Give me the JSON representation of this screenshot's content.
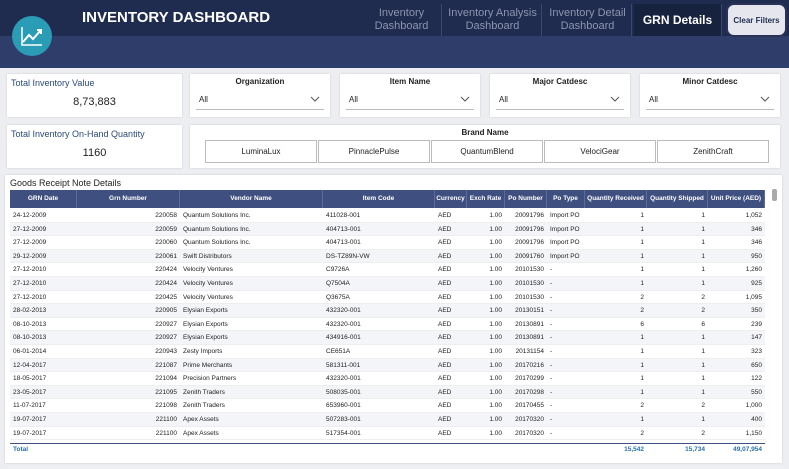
{
  "header": {
    "title": "INVENTORY DASHBOARD",
    "tabs": [
      "Inventory Dashboard",
      "Inventory Analysis Dashboard",
      "Inventory Detail Dashboard",
      "GRN Details"
    ],
    "clear_filters": "Clear Filters"
  },
  "kpis": [
    {
      "label": "Total Inventory Value",
      "value": "8,73,883"
    },
    {
      "label": "Total Inventory On-Hand Quantity",
      "value": "1160"
    }
  ],
  "slicers": [
    {
      "label": "Organization",
      "value": "All"
    },
    {
      "label": "Item Name",
      "value": "All"
    },
    {
      "label": "Major Catdesc",
      "value": "All"
    },
    {
      "label": "Minor Catdesc",
      "value": "All"
    }
  ],
  "brand": {
    "label": "Brand Name",
    "options": [
      "LuminaLux",
      "PinnaclePulse",
      "QuantumBlend",
      "VelociGear",
      "ZenithCraft"
    ]
  },
  "table": {
    "title": "Goods Receipt Note Details",
    "columns": [
      "GRN Date",
      "Grn Number",
      "Vendor Name",
      "Item Code",
      "Currency",
      "Exch Rate",
      "Po Number",
      "Po Type",
      "Quantity Received",
      "Quantity Shipped",
      "Unit Price (AED)"
    ],
    "rows": [
      [
        "24-12-2009",
        "220058",
        "Quantum Solutions Inc.",
        "411028-001",
        "AED",
        "1.00",
        "20091796",
        "Import PO",
        "1",
        "1",
        "1,052"
      ],
      [
        "27-12-2009",
        "220059",
        "Quantum Solutions Inc.",
        "404713-001",
        "AED",
        "1.00",
        "20091796",
        "Import PO",
        "1",
        "1",
        "346"
      ],
      [
        "27-12-2009",
        "220060",
        "Quantum Solutions Inc.",
        "404713-001",
        "AED",
        "1.00",
        "20091796",
        "Import PO",
        "1",
        "1",
        "346"
      ],
      [
        "29-12-2009",
        "220061",
        "Swift Distributors",
        "DS-TZ89N-VW",
        "AED",
        "1.00",
        "20091760",
        "Import PO",
        "1",
        "1",
        "950"
      ],
      [
        "27-12-2010",
        "220424",
        "Velocity Ventures",
        "C9726A",
        "AED",
        "1.00",
        "20101530",
        "-",
        "1",
        "1",
        "1,260"
      ],
      [
        "27-12-2010",
        "220424",
        "Velocity Ventures",
        "Q7504A",
        "AED",
        "1.00",
        "20101530",
        "-",
        "1",
        "1",
        "925"
      ],
      [
        "27-12-2010",
        "220425",
        "Velocity Ventures",
        "Q3675A",
        "AED",
        "1.00",
        "20101530",
        "-",
        "2",
        "2",
        "1,095"
      ],
      [
        "28-02-2013",
        "220905",
        "Elysian Exports",
        "432320-001",
        "AED",
        "1.00",
        "20130151",
        "-",
        "2",
        "2",
        "350"
      ],
      [
        "08-10-2013",
        "220927",
        "Elysian Exports",
        "432320-001",
        "AED",
        "1.00",
        "20130891",
        "-",
        "6",
        "6",
        "239"
      ],
      [
        "08-10-2013",
        "220927",
        "Elysian Exports",
        "434916-001",
        "AED",
        "1.00",
        "20130891",
        "-",
        "1",
        "1",
        "147"
      ],
      [
        "06-01-2014",
        "220943",
        "Zesty Imports",
        "CE651A",
        "AED",
        "1.00",
        "20131154",
        "-",
        "1",
        "1",
        "323"
      ],
      [
        "12-04-2017",
        "221087",
        "Prime Merchants",
        "581311-001",
        "AED",
        "1.00",
        "20170216",
        "-",
        "1",
        "1",
        "650"
      ],
      [
        "18-05-2017",
        "221094",
        "Precision Partners",
        "432320-001",
        "AED",
        "1.00",
        "20170299",
        "-",
        "1",
        "1",
        "122"
      ],
      [
        "23-05-2017",
        "221095",
        "Zenith Traders",
        "508035-001",
        "AED",
        "1.00",
        "20170298",
        "-",
        "1",
        "1",
        "550"
      ],
      [
        "11-07-2017",
        "221098",
        "Zenith Traders",
        "653960-001",
        "AED",
        "1.00",
        "20170455",
        "-",
        "2",
        "2",
        "1,000"
      ],
      [
        "19-07-2017",
        "221100",
        "Apex Assets",
        "507283-001",
        "AED",
        "1.00",
        "20170320",
        "-",
        "1",
        "1",
        "400"
      ],
      [
        "19-07-2017",
        "221100",
        "Apex Assets",
        "517354-001",
        "AED",
        "1.00",
        "20170320",
        "-",
        "2",
        "2",
        "1,150"
      ]
    ],
    "total": {
      "label": "Total",
      "quantity_received": "15,542",
      "quantity_shipped": "15,734",
      "unit_price": "49,07,954"
    }
  }
}
